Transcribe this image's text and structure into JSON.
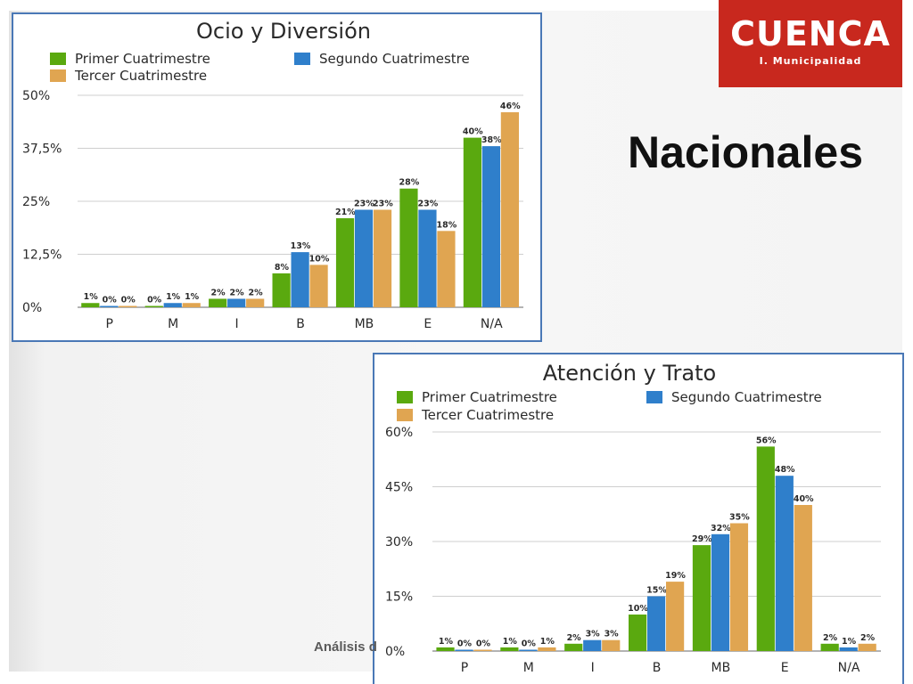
{
  "slide": {
    "heading": "Nacionales",
    "footer_text": "Análisis d",
    "logo": {
      "word": "CUENCA",
      "subtitle": "I. Municipalidad",
      "color": "#c8281e"
    }
  },
  "colors": {
    "series": [
      "#5aa90f",
      "#2f7fcb",
      "#e0a551"
    ],
    "panel_border": "#4a78b6"
  },
  "chart_data": [
    {
      "type": "bar",
      "title": "Ocio y Diversión",
      "categories": [
        "P",
        "M",
        "I",
        "B",
        "MB",
        "E",
        "N/A"
      ],
      "series": [
        {
          "name": "Primer Cuatrimestre",
          "values": [
            1,
            0,
            2,
            8,
            21,
            28,
            40
          ],
          "labels": [
            "1%",
            "0%",
            "2%",
            "8%",
            "21%",
            "28%",
            "40%"
          ]
        },
        {
          "name": "Segundo Cuatrimestre",
          "values": [
            0,
            1,
            2,
            13,
            23,
            23,
            38
          ],
          "labels": [
            "0%",
            "1%",
            "2%",
            "13%",
            "23%",
            "23%",
            "38%"
          ]
        },
        {
          "name": "Tercer Cuatrimestre",
          "values": [
            0,
            1,
            2,
            10,
            23,
            18,
            46
          ],
          "labels": [
            "0%",
            "1%",
            "2%",
            "10%",
            "23%",
            "18%",
            "46%"
          ]
        }
      ],
      "yticks": [
        "0%",
        "12,5%",
        "25%",
        "37,5%",
        "50%"
      ],
      "ylim": [
        0,
        50
      ],
      "grid": true,
      "legend": "top"
    },
    {
      "type": "bar",
      "title": "Atención y Trato",
      "categories": [
        "P",
        "M",
        "I",
        "B",
        "MB",
        "E",
        "N/A"
      ],
      "series": [
        {
          "name": "Primer Cuatrimestre",
          "values": [
            1,
            1,
            2,
            10,
            29,
            56,
            2
          ],
          "labels": [
            "1%",
            "1%",
            "2%",
            "10%",
            "29%",
            "56%",
            "2%"
          ]
        },
        {
          "name": "Segundo Cuatrimestre",
          "values": [
            0,
            0,
            3,
            15,
            32,
            48,
            1
          ],
          "labels": [
            "0%",
            "0%",
            "3%",
            "15%",
            "32%",
            "48%",
            "1%"
          ]
        },
        {
          "name": "Tercer Cuatrimestre",
          "values": [
            0,
            1,
            3,
            19,
            35,
            40,
            2
          ],
          "labels": [
            "0%",
            "1%",
            "3%",
            "19%",
            "35%",
            "40%",
            "2%"
          ]
        }
      ],
      "yticks": [
        "0%",
        "15%",
        "30%",
        "45%",
        "60%"
      ],
      "ylim": [
        0,
        60
      ],
      "grid": true,
      "legend": "top"
    }
  ]
}
